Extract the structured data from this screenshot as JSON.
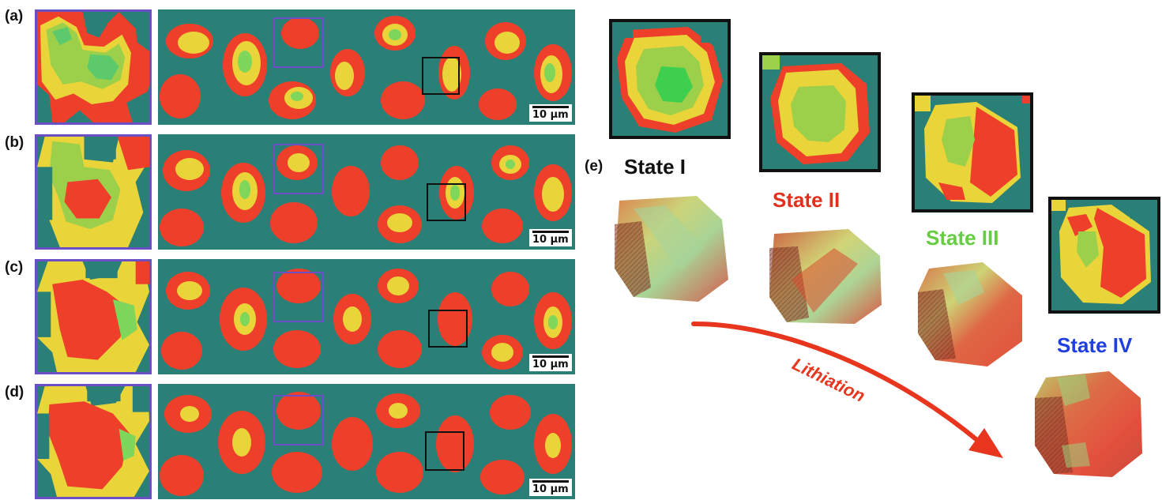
{
  "panels": [
    {
      "label": "(a)",
      "scale": "10 µm"
    },
    {
      "label": "(b)",
      "scale": "10 µm"
    },
    {
      "label": "(c)",
      "scale": "10 µm"
    },
    {
      "label": "(d)",
      "scale": "10 µm"
    }
  ],
  "panel_e": {
    "label": "(e)"
  },
  "states": [
    {
      "label": "State I",
      "color": "#111111"
    },
    {
      "label": "State II",
      "color": "#e3301c"
    },
    {
      "label": "State III",
      "color": "#66cc44"
    },
    {
      "label": "State IV",
      "color": "#1f3fe0"
    }
  ],
  "arrow_label": "Lithiation",
  "colors": {
    "background_phase": "#2a7f76",
    "red_phase": "#ee3f2a",
    "yellow_phase": "#e9d43a",
    "green_phase": "#7ed65a",
    "roi_purple": "#6b4fc4",
    "roi_black": "#111111",
    "arrow": "#e8351d"
  }
}
